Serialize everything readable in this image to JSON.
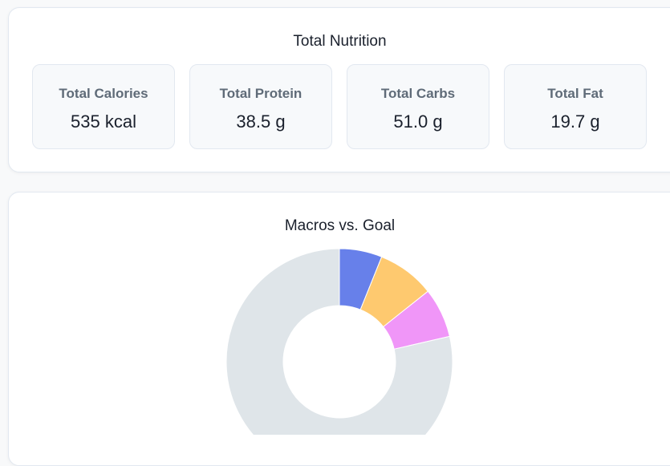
{
  "summary": {
    "title": "Total Nutrition",
    "cards": [
      {
        "label": "Total Calories",
        "value": "535 kcal"
      },
      {
        "label": "Total Protein",
        "value": "38.5 g"
      },
      {
        "label": "Total Carbs",
        "value": "51.0 g"
      },
      {
        "label": "Total Fat",
        "value": "19.7 g"
      }
    ]
  },
  "chart_data": {
    "type": "pie",
    "title": "Macros vs. Goal",
    "donut": true,
    "legend": "none",
    "slices": [
      {
        "value": 6.1,
        "color": "#6780ea"
      },
      {
        "value": 8.2,
        "color": "#fec96f"
      },
      {
        "value": 7.1,
        "color": "#f096f8"
      },
      {
        "value": 78.6,
        "color": "#dfe5e9"
      }
    ]
  }
}
